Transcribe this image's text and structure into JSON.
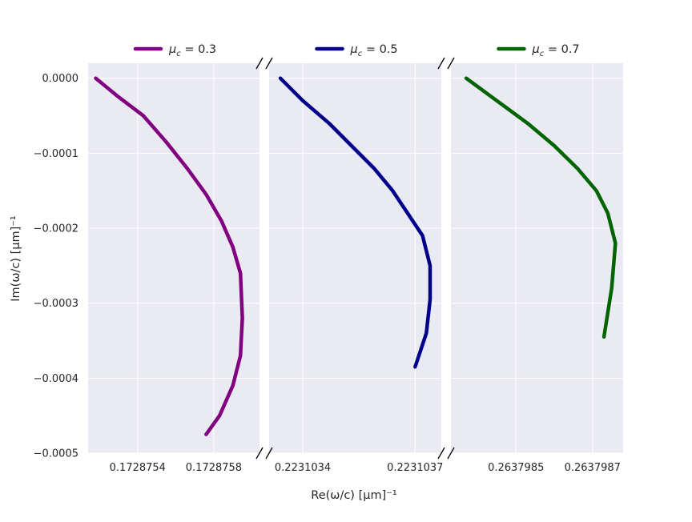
{
  "chart_data": {
    "type": "line",
    "xlabel": "Re(ω/c) [μm]⁻¹",
    "ylabel": "Im(ω/c) [μm]⁻¹",
    "ylim": [
      -0.0005,
      2e-05
    ],
    "yticks": [
      0.0,
      -0.0001,
      -0.0002,
      -0.0003,
      -0.0004,
      -0.0005
    ],
    "ytick_labels": [
      "0.0000",
      "−0.0001",
      "−0.0002",
      "−0.0003",
      "−0.0004",
      "−0.0005"
    ],
    "grid": true,
    "broken_x_axis": true,
    "background": "#eaeaf2",
    "panels": [
      {
        "legend": {
          "mu": "μ",
          "sub": "c",
          "eq": "= 0.3"
        },
        "color": "#800080",
        "xlim": [
          0.17287514,
          0.17287604
        ],
        "xticks": [
          0.1728754,
          0.1728758
        ],
        "xtick_labels": [
          "0.1728754",
          "0.1728758"
        ],
        "x": [
          0.17287518,
          0.1728753,
          0.17287543,
          0.17287555,
          0.17287566,
          0.17287576,
          0.17287584,
          0.1728759,
          0.17287594,
          0.17287595,
          0.17287594,
          0.1728759,
          0.17287583,
          0.17287576
        ],
        "y": [
          0.0,
          -2.5e-05,
          -5e-05,
          -8.5e-05,
          -0.00012,
          -0.000155,
          -0.00019,
          -0.000225,
          -0.00026,
          -0.00032,
          -0.00037,
          -0.00041,
          -0.00045,
          -0.000475
        ]
      },
      {
        "legend": {
          "mu": "μ",
          "sub": "c",
          "eq": "= 0.5"
        },
        "color": "#00008b",
        "xlim": [
          0.22310331,
          0.22310377
        ],
        "xticks": [
          0.2231034,
          0.2231037
        ],
        "xtick_labels": [
          "0.2231034",
          "0.2231037"
        ],
        "x": [
          0.22310334,
          0.2231034,
          0.22310347,
          0.22310353,
          0.22310359,
          0.22310364,
          0.22310368,
          0.22310372,
          0.22310374,
          0.22310374,
          0.22310373,
          0.2231037
        ],
        "y": [
          0.0,
          -3e-05,
          -6e-05,
          -9e-05,
          -0.00012,
          -0.00015,
          -0.00018,
          -0.00021,
          -0.00025,
          -0.000295,
          -0.00034,
          -0.000385
        ]
      },
      {
        "legend": {
          "mu": "μ",
          "sub": "c",
          "eq": "= 0.7"
        },
        "color": "#006400",
        "xlim": [
          0.26379833,
          0.26379878
        ],
        "xticks": [
          0.2637985,
          0.2637987
        ],
        "xtick_labels": [
          "0.2637985",
          "0.2637987"
        ],
        "x": [
          0.26379837,
          0.26379845,
          0.26379853,
          0.2637986,
          0.26379866,
          0.26379871,
          0.26379874,
          0.26379876,
          0.26379875,
          0.26379873
        ],
        "y": [
          0.0,
          -3e-05,
          -6e-05,
          -9e-05,
          -0.00012,
          -0.00015,
          -0.00018,
          -0.00022,
          -0.00028,
          -0.000345
        ]
      }
    ]
  }
}
